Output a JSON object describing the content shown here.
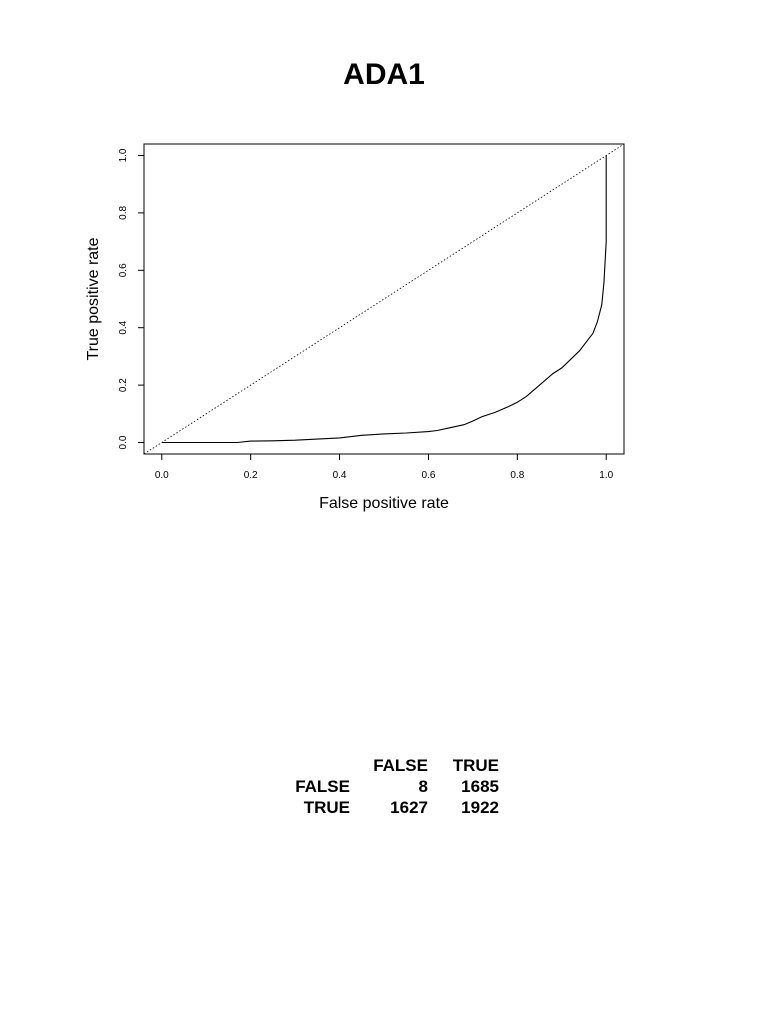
{
  "chart_data": {
    "type": "line",
    "title": "ADA1",
    "xlabel": "False positive rate",
    "ylabel": "True positive rate",
    "xlim": [
      -0.04,
      1.04
    ],
    "ylim": [
      -0.04,
      1.04
    ],
    "xticks": [
      "0.0",
      "0.2",
      "0.4",
      "0.6",
      "0.8",
      "1.0"
    ],
    "yticks": [
      "0.0",
      "0.2",
      "0.4",
      "0.6",
      "0.8",
      "1.0"
    ],
    "grid": false,
    "series": [
      {
        "style": "solid",
        "x": [
          0.0,
          0.05,
          0.1,
          0.17,
          0.2,
          0.25,
          0.3,
          0.35,
          0.4,
          0.45,
          0.5,
          0.55,
          0.6,
          0.62,
          0.65,
          0.68,
          0.7,
          0.72,
          0.75,
          0.78,
          0.8,
          0.82,
          0.85,
          0.88,
          0.9,
          0.92,
          0.94,
          0.96,
          0.97,
          0.98,
          0.99,
          0.995,
          1.0,
          1.0,
          1.0
        ],
        "y": [
          0.0,
          0.0,
          0.0,
          0.0,
          0.005,
          0.006,
          0.008,
          0.012,
          0.016,
          0.025,
          0.03,
          0.033,
          0.038,
          0.042,
          0.052,
          0.062,
          0.075,
          0.09,
          0.105,
          0.125,
          0.14,
          0.16,
          0.2,
          0.24,
          0.26,
          0.29,
          0.32,
          0.36,
          0.38,
          0.42,
          0.48,
          0.56,
          0.7,
          0.85,
          1.0
        ]
      },
      {
        "style": "dotted",
        "x": [
          -0.04,
          1.04
        ],
        "y": [
          -0.04,
          1.04
        ]
      }
    ]
  },
  "table": {
    "columns": [
      "FALSE",
      "TRUE"
    ],
    "rows": [
      {
        "label": "FALSE",
        "values": [
          "8",
          "1685"
        ]
      },
      {
        "label": "TRUE",
        "values": [
          "1627",
          "1922"
        ]
      }
    ]
  }
}
